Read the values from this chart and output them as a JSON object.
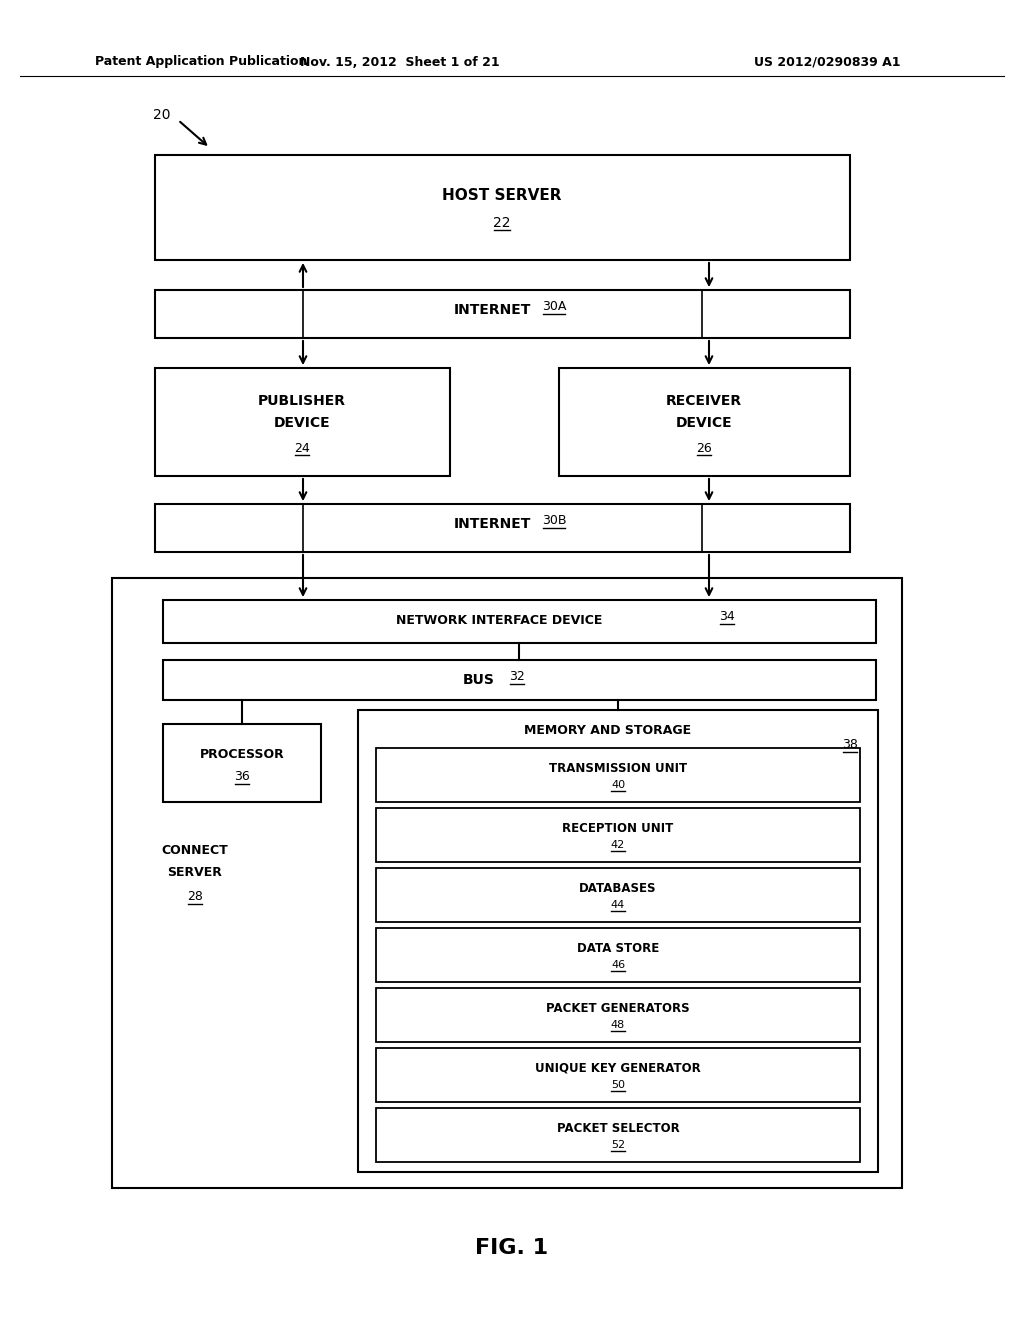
{
  "header_left": "Patent Application Publication",
  "header_mid": "Nov. 15, 2012  Sheet 1 of 21",
  "header_right": "US 2012/0290839 A1",
  "fig_label": "FIG. 1",
  "label_20": "20",
  "bg_color": "#ffffff",
  "line_color": "#000000",
  "text_color": "#000000"
}
